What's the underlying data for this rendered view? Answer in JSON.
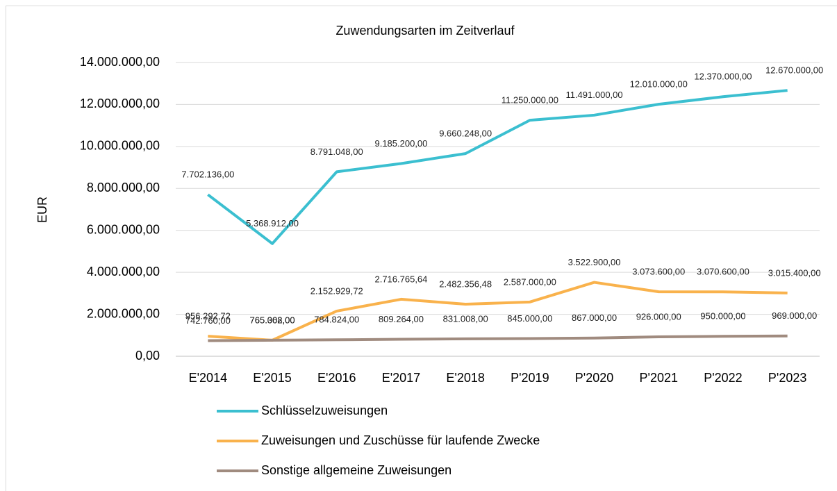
{
  "chart_data": {
    "type": "line",
    "title": "Zuwendungsarten im Zeitverlauf",
    "y_label": "EUR",
    "categories": [
      "E'2014",
      "E'2015",
      "E'2016",
      "E'2017",
      "E'2018",
      "P'2019",
      "P'2020",
      "P'2021",
      "P'2022",
      "P'2023"
    ],
    "series": [
      {
        "name": "Schlüsselzuweisungen",
        "color": "#3bbfd0",
        "values": [
          7702136,
          5368912,
          8791048,
          9185200,
          9660248,
          11250000,
          11491000,
          12010000,
          12370000,
          12670000
        ],
        "value_labels": [
          "7.702.136,00",
          "5.368.912,00",
          "8.791.048,00",
          "9.185.200,00",
          "9.660.248,00",
          "11.250.000,00",
          "11.491.000,00",
          "12.010.000,00",
          "12.370.000,00",
          "12.670.000,00"
        ]
      },
      {
        "name": "Zuweisungen und Zuschüsse für laufende Zwecke",
        "color": "#f9b24c",
        "values": [
          956292.72,
          765062,
          2152929.72,
          2716765.64,
          2482356.48,
          2587000,
          3522900,
          3073600,
          3070600,
          3015400
        ],
        "value_labels": [
          "956.292,72",
          "765.062,00",
          "2.152.929,72",
          "2.716.765,64",
          "2.482.356,48",
          "2.587.000,00",
          "3.522.900,00",
          "3.073.600,00",
          "3.070.600,00",
          "3.015.400,00"
        ]
      },
      {
        "name": "Sonstige allgemeine Zuweisungen",
        "color": "#a08b7f",
        "values": [
          742760,
          765308,
          784824,
          809264,
          831008,
          845000,
          867000,
          926000,
          950000,
          969000
        ],
        "value_labels": [
          "742.760,00",
          "765.308,00",
          "784.824,00",
          "809.264,00",
          "831.008,00",
          "845.000,00",
          "867.000,00",
          "926.000,00",
          "950.000,00",
          "969.000,00"
        ]
      }
    ],
    "ylim": [
      0,
      14000000
    ],
    "yticks": [
      {
        "value": 0,
        "label": "0,00"
      },
      {
        "value": 2000000,
        "label": "2.000.000,00"
      },
      {
        "value": 4000000,
        "label": "4.000.000,00"
      },
      {
        "value": 6000000,
        "label": "6.000.000,00"
      },
      {
        "value": 8000000,
        "label": "8.000.000,00"
      },
      {
        "value": 10000000,
        "label": "10.000.000,00"
      },
      {
        "value": 12000000,
        "label": "12.000.000,00"
      },
      {
        "value": 14000000,
        "label": "14.000.000,00"
      }
    ],
    "grid": true
  }
}
